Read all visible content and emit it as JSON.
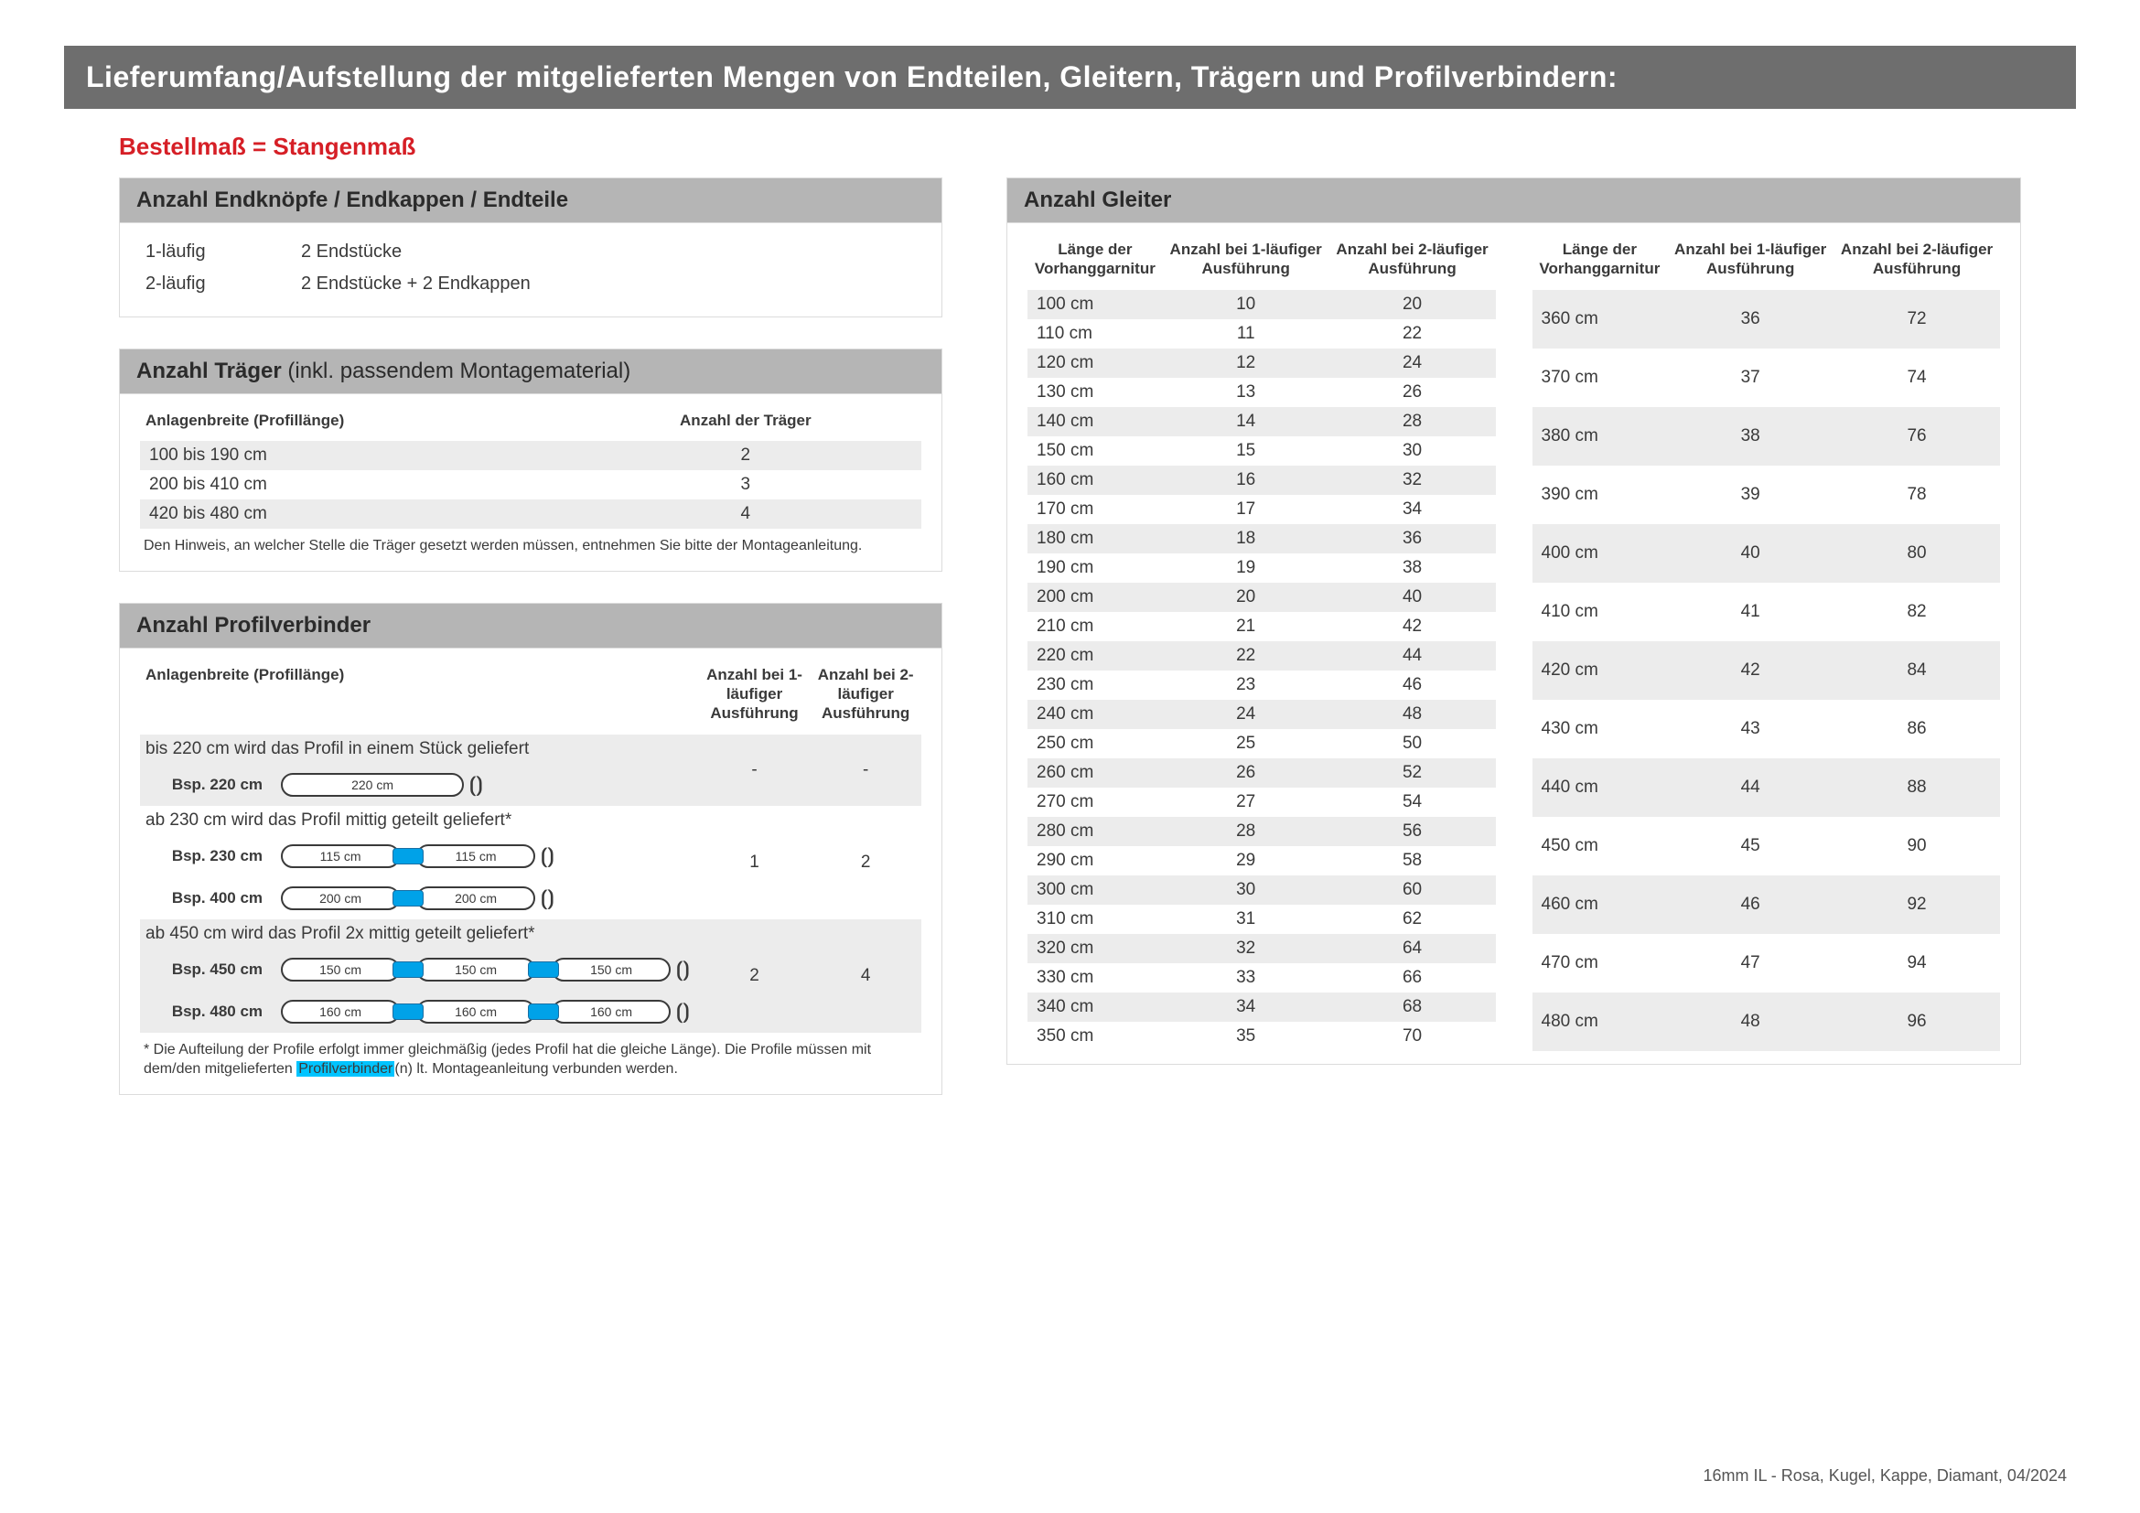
{
  "title": "Lieferumfang/Aufstellung der mitgelieferten Mengen von Endteilen, Gleitern, Trägern und Profilverbindern:",
  "redHeading": "Bestellmaß = Stangenmaß",
  "footer": "16mm IL - Rosa, Kugel, Kappe, Diamant, 04/2024",
  "endteile": {
    "header": "Anzahl Endknöpfe / Endkappen / Endteile",
    "rows": [
      {
        "c1": "1-läufig",
        "c2": "2 Endstücke"
      },
      {
        "c1": "2-läufig",
        "c2": "2 Endstücke + 2 Endkappen"
      }
    ]
  },
  "traeger": {
    "header_bold": "Anzahl Träger",
    "header_light": " (inkl. passendem Montagematerial)",
    "col1": "Anlagenbreite (Profillänge)",
    "col2": "Anzahl der Träger",
    "rows": [
      {
        "w": "100 bis 190 cm",
        "n": "2"
      },
      {
        "w": "200 bis 410 cm",
        "n": "3"
      },
      {
        "w": "420 bis 480 cm",
        "n": "4"
      }
    ],
    "note": "Den Hinweis, an welcher Stelle die Träger gesetzt werden müssen, entnehmen Sie bitte der Montageanleitung."
  },
  "pv": {
    "header": "Anzahl Profilverbinder",
    "col1": "Anlagenbreite (Profillänge)",
    "col2": "Anzahl bei 1-läufiger Ausführung",
    "col3": "Anzahl bei 2-läufiger Ausführung",
    "g1_desc": "bis 220 cm wird das Profil in einem Stück geliefert",
    "g1_n1": "-",
    "g1_n2": "-",
    "g1_ex1_label": "Bsp. 220 cm",
    "g1_ex1_segs": [
      "220 cm"
    ],
    "g2_desc": "ab 230 cm wird das Profil mittig geteilt geliefert*",
    "g2_n1": "1",
    "g2_n2": "2",
    "g2_ex1_label": "Bsp. 230 cm",
    "g2_ex1_segs": [
      "115 cm",
      "115 cm"
    ],
    "g2_ex2_label": "Bsp. 400 cm",
    "g2_ex2_segs": [
      "200 cm",
      "200 cm"
    ],
    "g3_desc": "ab 450 cm wird das Profil 2x mittig geteilt geliefert*",
    "g3_n1": "2",
    "g3_n2": "4",
    "g3_ex1_label": "Bsp. 450 cm",
    "g3_ex1_segs": [
      "150 cm",
      "150 cm",
      "150 cm"
    ],
    "g3_ex2_label": "Bsp. 480 cm",
    "g3_ex2_segs": [
      "160 cm",
      "160 cm",
      "160 cm"
    ],
    "note_a": "* Die Aufteilung der Profile erfolgt immer gleichmäßig (jedes Profil hat die gleiche Länge). Die Profile müssen mit dem/den mitgelieferten ",
    "note_hl": "Profilverbinder",
    "note_b": "(n) lt. Montageanleitung verbunden werden."
  },
  "gleiter": {
    "header": "Anzahl Gleiter",
    "h1": "Länge der Vorhang­garnitur",
    "h2": "Anzahl bei 1-läufiger Ausführung",
    "h3": "Anzahl bei 2-läufiger Ausführung",
    "left": [
      [
        "100 cm",
        "10",
        "20"
      ],
      [
        "110 cm",
        "11",
        "22"
      ],
      [
        "120 cm",
        "12",
        "24"
      ],
      [
        "130 cm",
        "13",
        "26"
      ],
      [
        "140 cm",
        "14",
        "28"
      ],
      [
        "150 cm",
        "15",
        "30"
      ],
      [
        "160 cm",
        "16",
        "32"
      ],
      [
        "170 cm",
        "17",
        "34"
      ],
      [
        "180 cm",
        "18",
        "36"
      ],
      [
        "190 cm",
        "19",
        "38"
      ],
      [
        "200 cm",
        "20",
        "40"
      ],
      [
        "210 cm",
        "21",
        "42"
      ],
      [
        "220 cm",
        "22",
        "44"
      ],
      [
        "230 cm",
        "23",
        "46"
      ],
      [
        "240 cm",
        "24",
        "48"
      ],
      [
        "250 cm",
        "25",
        "50"
      ],
      [
        "260 cm",
        "26",
        "52"
      ],
      [
        "270 cm",
        "27",
        "54"
      ],
      [
        "280 cm",
        "28",
        "56"
      ],
      [
        "290 cm",
        "29",
        "58"
      ],
      [
        "300 cm",
        "30",
        "60"
      ],
      [
        "310 cm",
        "31",
        "62"
      ],
      [
        "320 cm",
        "32",
        "64"
      ],
      [
        "330 cm",
        "33",
        "66"
      ],
      [
        "340 cm",
        "34",
        "68"
      ],
      [
        "350 cm",
        "35",
        "70"
      ]
    ],
    "right": [
      [
        "360 cm",
        "36",
        "72"
      ],
      [
        "370 cm",
        "37",
        "74"
      ],
      [
        "380 cm",
        "38",
        "76"
      ],
      [
        "390 cm",
        "39",
        "78"
      ],
      [
        "400 cm",
        "40",
        "80"
      ],
      [
        "410 cm",
        "41",
        "82"
      ],
      [
        "420 cm",
        "42",
        "84"
      ],
      [
        "430 cm",
        "43",
        "86"
      ],
      [
        "440 cm",
        "44",
        "88"
      ],
      [
        "450 cm",
        "45",
        "90"
      ],
      [
        "460 cm",
        "46",
        "92"
      ],
      [
        "470 cm",
        "47",
        "94"
      ],
      [
        "480 cm",
        "48",
        "96"
      ]
    ]
  },
  "style": {
    "segWidths": {
      "1": 200,
      "2": 130,
      "3": 130
    }
  }
}
